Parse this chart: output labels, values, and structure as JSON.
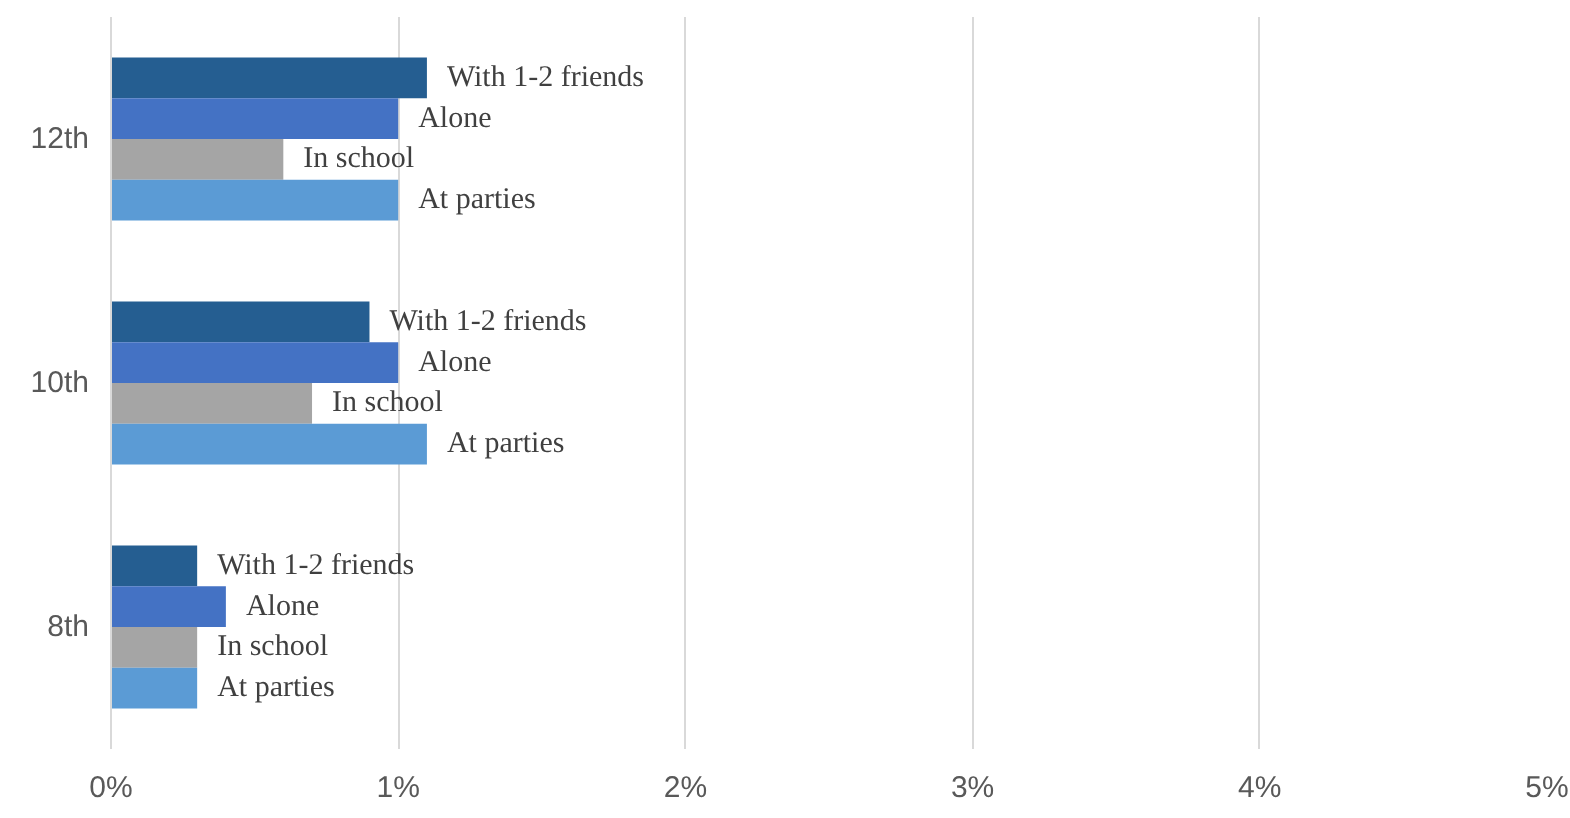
{
  "chart_data": {
    "type": "bar",
    "orientation": "horizontal",
    "categories": [
      "12th",
      "10th",
      "8th"
    ],
    "series": [
      {
        "name": "With 1-2 friends",
        "color": "#255e91",
        "values": [
          1.1,
          0.9,
          0.3
        ]
      },
      {
        "name": "Alone",
        "color": "#4472c4",
        "values": [
          1.0,
          1.0,
          0.4
        ]
      },
      {
        "name": "In school",
        "color": "#a5a5a5",
        "values": [
          0.6,
          0.7,
          0.3
        ]
      },
      {
        "name": "At parties",
        "color": "#5b9bd5",
        "values": [
          1.0,
          1.1,
          0.3
        ]
      }
    ],
    "xlim": [
      0,
      5
    ],
    "xticks": [
      {
        "value": 0,
        "label": "0%"
      },
      {
        "value": 1,
        "label": "1%"
      },
      {
        "value": 2,
        "label": "2%"
      },
      {
        "value": 3,
        "label": "3%"
      },
      {
        "value": 4,
        "label": "4%"
      },
      {
        "value": 5,
        "label": "5%"
      }
    ],
    "grid": "x"
  }
}
